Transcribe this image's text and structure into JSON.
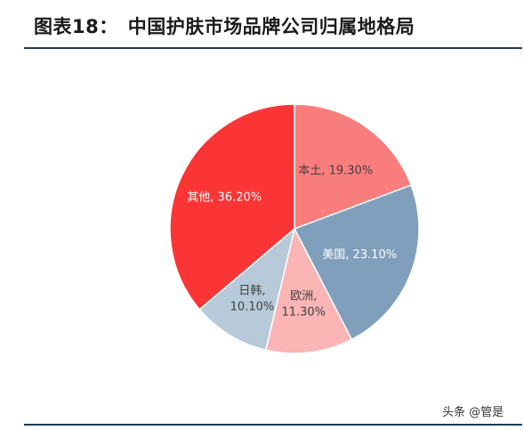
{
  "title": "图表18：　中国护肤市场品牌公司归属地格局",
  "watermark": "头条 @管是",
  "chart_data": {
    "type": "pie",
    "slices": [
      {
        "name": "本土",
        "value": 19.3,
        "label_lines": [
          "本土, 19.30%"
        ],
        "color": "#fa7d7d",
        "text_color": "#404040"
      },
      {
        "name": "美国",
        "value": 23.1,
        "label_lines": [
          "美国, 23.10%"
        ],
        "color": "#7f9fbc",
        "text_color": "#ffffff"
      },
      {
        "name": "欧洲",
        "value": 11.3,
        "label_lines": [
          "欧洲,",
          "11.30%"
        ],
        "color": "#fbb5b5",
        "text_color": "#404040"
      },
      {
        "name": "日韩",
        "value": 10.1,
        "label_lines": [
          "日韩,",
          "10.10%"
        ],
        "color": "#b6cada",
        "text_color": "#404040"
      },
      {
        "name": "其他",
        "value": 36.2,
        "label_lines": [
          "其他, 36.20%"
        ],
        "color": "#fb3535",
        "text_color": "#ffffff"
      }
    ],
    "start_angle": "12 o'clock",
    "direction": "clockwise"
  }
}
